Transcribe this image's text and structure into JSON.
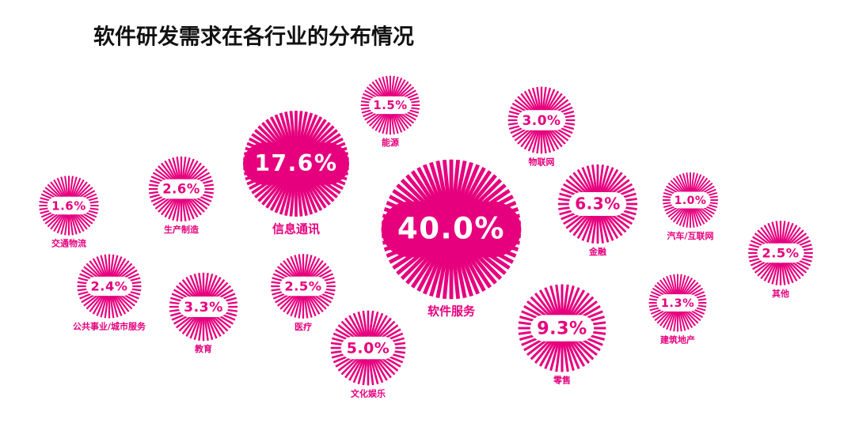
{
  "chart_data": {
    "type": "bubble",
    "title": "软件研发需求在各行业的分布情况",
    "categories": [
      "软件服务",
      "信息通讯",
      "零售",
      "金融",
      "文化娱乐",
      "教育",
      "物联网",
      "生产制造",
      "其他",
      "医疗",
      "公共事业/城市服务",
      "交通物流",
      "能源",
      "建筑地产",
      "汽车/互联网"
    ],
    "values": [
      40.0,
      17.6,
      9.3,
      6.3,
      5.0,
      3.3,
      3.0,
      2.6,
      2.5,
      2.5,
      2.4,
      1.6,
      1.5,
      1.3,
      1.0
    ],
    "value_labels": [
      "40.0%",
      "17.6%",
      "9.3%",
      "6.3%",
      "5.0%",
      "3.3%",
      "3.0%",
      "2.6%",
      "2.5%",
      "2.5%",
      "2.4%",
      "1.6%",
      "1.5%",
      "1.3%",
      "1.0%"
    ],
    "color": "#e6007e"
  }
}
